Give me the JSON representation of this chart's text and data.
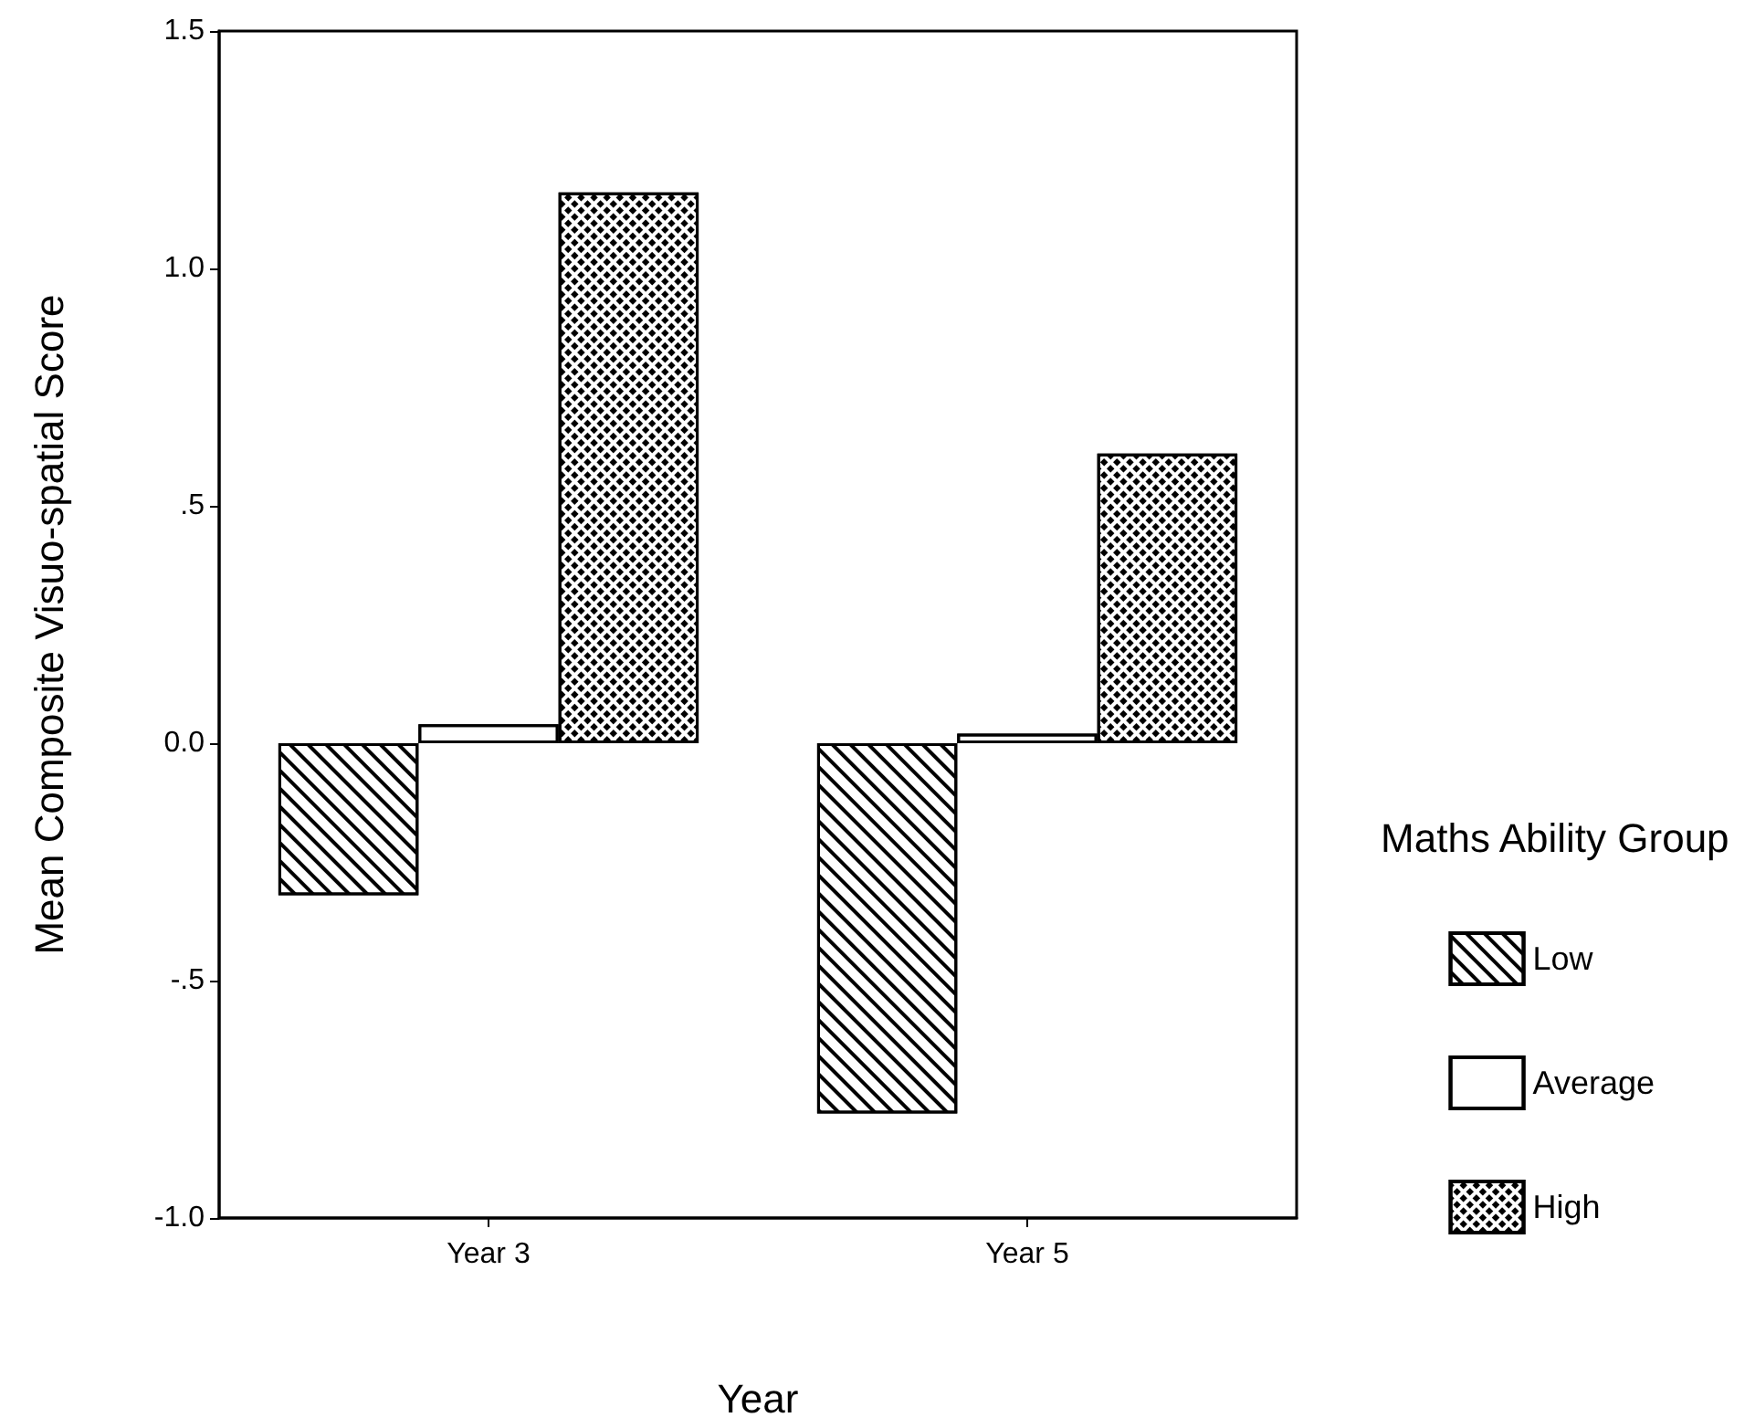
{
  "chart_data": {
    "type": "bar",
    "xlabel": "Year",
    "ylabel": "Mean Composite Visuo-spatial Score",
    "legend_title": "Maths Ability Group",
    "categories": [
      "Year 3",
      "Year 5"
    ],
    "series": [
      {
        "name": "Low",
        "color": "#ffffff",
        "values": [
          -0.32,
          -0.78
        ]
      },
      {
        "name": "Average",
        "color": "#ffffff",
        "values": [
          0.04,
          0.02
        ]
      },
      {
        "name": "High",
        "color": "#ffffff",
        "values": [
          1.16,
          0.61
        ]
      }
    ],
    "ylim": [
      -1.0,
      1.5
    ],
    "yticks": [
      {
        "value": -1.0,
        "label": "-1.0"
      },
      {
        "value": -0.5,
        "label": "-.5"
      },
      {
        "value": 0,
        "label": "0.0"
      },
      {
        "value": 0.5,
        "label": ".5"
      },
      {
        "value": 1.0,
        "label": "1.0"
      },
      {
        "value": 1.5,
        "label": "1.5"
      }
    ],
    "grid": false,
    "legend": "right"
  }
}
